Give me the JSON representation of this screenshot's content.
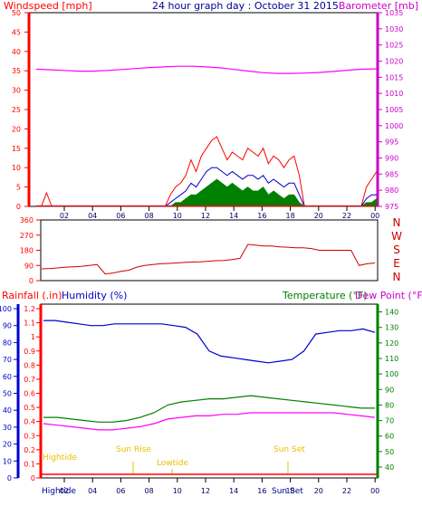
{
  "header": {
    "windspeed_label": "Windspeed [mph]",
    "graph_title": "24 hour graph day : October 31 2015",
    "barometer_label": "Barometer [mb]"
  },
  "colors": {
    "wind": "#ff0000",
    "gust": "#ff0000",
    "avg": "#0000cc",
    "low": "#008000",
    "barometer": "#ff00ff",
    "direction": "#cc0000",
    "humidity": "#0000cc",
    "temperature": "#008000",
    "dewpoint": "#ff00ff",
    "tide": "#ffd700",
    "rain": "#ff0000",
    "axis_dark": "#000000"
  },
  "direction_panel": {
    "compass": [
      "N",
      "W",
      "S",
      "E",
      "N"
    ]
  },
  "bottom_panel": {
    "rainfall_label": "Rainfall (.in)",
    "humidity_label": "Humidity (%)",
    "temperature_label": "Temperature (°F)",
    "dewpoint_label": "Dew Point (°F)",
    "tide_annotations": [
      "Hightide",
      "Sun Rise",
      "Lowtide",
      "Sun Set"
    ],
    "footer_labels": [
      "Hightide",
      "Sun Set"
    ]
  },
  "chart_data": [
    {
      "type": "area",
      "title": "24 hour graph day : October 31 2015",
      "x_ticks": [
        "02",
        "04",
        "06",
        "08",
        "10",
        "12",
        "14",
        "16",
        "18",
        "20",
        "22",
        "00"
      ],
      "y_left": {
        "label": "Windspeed [mph]",
        "ticks": [
          "0",
          "5",
          "10",
          "15",
          "20",
          "25",
          "30",
          "35",
          "40",
          "45",
          "50"
        ],
        "ylim": [
          0,
          50
        ]
      },
      "y_right": {
        "label": "Barometer [mb]",
        "ticks": [
          "975",
          "980",
          "985",
          "990",
          "995",
          "1000",
          "1005",
          "1010",
          "1015",
          "1020",
          "1025",
          "1030",
          "1035"
        ],
        "ylim": [
          975,
          1035
        ]
      },
      "grid": false,
      "series": [
        {
          "key": "gust",
          "values_mph": [
            0,
            0,
            3.5,
            0,
            0,
            0,
            0,
            0,
            0,
            0,
            0,
            0,
            0,
            0,
            0,
            0,
            0,
            0,
            0,
            0,
            0,
            0,
            0,
            0,
            0,
            0,
            3,
            5,
            6,
            8,
            12,
            9,
            13,
            15,
            17,
            18,
            15,
            12,
            14,
            13,
            12,
            15,
            14,
            13,
            15,
            11,
            13,
            12,
            10,
            12,
            13,
            8,
            0,
            0,
            0,
            0,
            0,
            0,
            0,
            0,
            0,
            0,
            0,
            0,
            5,
            7,
            9
          ]
        },
        {
          "key": "avg",
          "values_mph": [
            0,
            0,
            0,
            0,
            0,
            0,
            0,
            0,
            0,
            0,
            0,
            0,
            0,
            0,
            0,
            0,
            0,
            0,
            0,
            0,
            0,
            0,
            0,
            0,
            0,
            0,
            1,
            2,
            3,
            4,
            6,
            5,
            7,
            9,
            10,
            10,
            9,
            8,
            9,
            8,
            7,
            8,
            8,
            7,
            8,
            6,
            7,
            6,
            5,
            6,
            6,
            3,
            0,
            0,
            0,
            0,
            0,
            0,
            0,
            0,
            0,
            0,
            0,
            0,
            2,
            3,
            3
          ]
        },
        {
          "key": "low",
          "values_mph": [
            0,
            0,
            0,
            0,
            0,
            0,
            0,
            0,
            0,
            0,
            0,
            0,
            0,
            0,
            0,
            0,
            0,
            0,
            0,
            0,
            0,
            0,
            0,
            0,
            0,
            0,
            0,
            1,
            1,
            2,
            3,
            3,
            4,
            5,
            6,
            7,
            6,
            5,
            6,
            5,
            4,
            5,
            4,
            4,
            5,
            3,
            4,
            3,
            2,
            3,
            3,
            1,
            0,
            0,
            0,
            0,
            0,
            0,
            0,
            0,
            0,
            0,
            0,
            0,
            1,
            1,
            2
          ]
        },
        {
          "key": "barometer",
          "values_mb": [
            1017.5,
            1017.3,
            1017.1,
            1016.9,
            1016.9,
            1017.1,
            1017.4,
            1017.7,
            1018.0,
            1018.2,
            1018.4,
            1018.4,
            1018.2,
            1017.9,
            1017.4,
            1016.9,
            1016.4,
            1016.2,
            1016.2,
            1016.3,
            1016.5,
            1016.8,
            1017.2,
            1017.5,
            1017.6
          ]
        }
      ]
    },
    {
      "type": "line",
      "y_ticks": [
        "0",
        "90",
        "180",
        "270",
        "360"
      ],
      "ylim": [
        0,
        360
      ],
      "series": [
        {
          "key": "direction",
          "values_deg": [
            70,
            72,
            75,
            80,
            82,
            85,
            90,
            95,
            40,
            45,
            55,
            62,
            80,
            90,
            95,
            100,
            102,
            105,
            108,
            110,
            112,
            115,
            118,
            120,
            125,
            132,
            215,
            210,
            205,
            205,
            200,
            198,
            195,
            195,
            190,
            180,
            180,
            180,
            180,
            180,
            90,
            100,
            105
          ]
        }
      ]
    },
    {
      "type": "line",
      "y_left_rain": {
        "label": "Rainfall (.in)",
        "ticks": [
          "0",
          "0.1",
          "0.2",
          "0.3",
          "0.4",
          "0.5",
          "0.6",
          "0.7",
          "0.8",
          "0.9",
          "1",
          "1.1",
          "1.2"
        ],
        "ylim": [
          0,
          1.2
        ]
      },
      "y_left_humidity": {
        "label": "Humidity (%)",
        "ticks": [
          "0",
          "10",
          "20",
          "30",
          "40",
          "50",
          "60",
          "70",
          "80",
          "90",
          "100"
        ],
        "ylim": [
          0,
          100
        ]
      },
      "y_right": {
        "label": "Temperature (°F)",
        "ticks": [
          "40",
          "50",
          "60",
          "70",
          "80",
          "90",
          "100",
          "110",
          "120",
          "130",
          "140"
        ],
        "ylim": [
          33,
          145
        ]
      },
      "series": [
        {
          "key": "humidity",
          "values_pct": [
            93,
            93,
            92,
            91,
            90,
            90,
            91,
            91,
            91,
            91,
            91,
            90,
            89,
            85,
            75,
            72,
            71,
            70,
            69,
            68,
            69,
            70,
            75,
            85,
            86,
            87,
            87,
            88,
            86
          ]
        },
        {
          "key": "temperature",
          "values_f": [
            72,
            72,
            71,
            70,
            69,
            69,
            70,
            72,
            75,
            80,
            82,
            83,
            84,
            84,
            85,
            86,
            85,
            84,
            83,
            82,
            81,
            80,
            79,
            78,
            78
          ]
        },
        {
          "key": "dewpoint",
          "values_f": [
            68,
            67,
            66,
            65,
            64,
            64,
            65,
            66,
            68,
            71,
            72,
            73,
            73,
            74,
            74,
            75,
            75,
            75,
            75,
            75,
            75,
            75,
            74,
            73,
            72
          ]
        }
      ]
    }
  ]
}
